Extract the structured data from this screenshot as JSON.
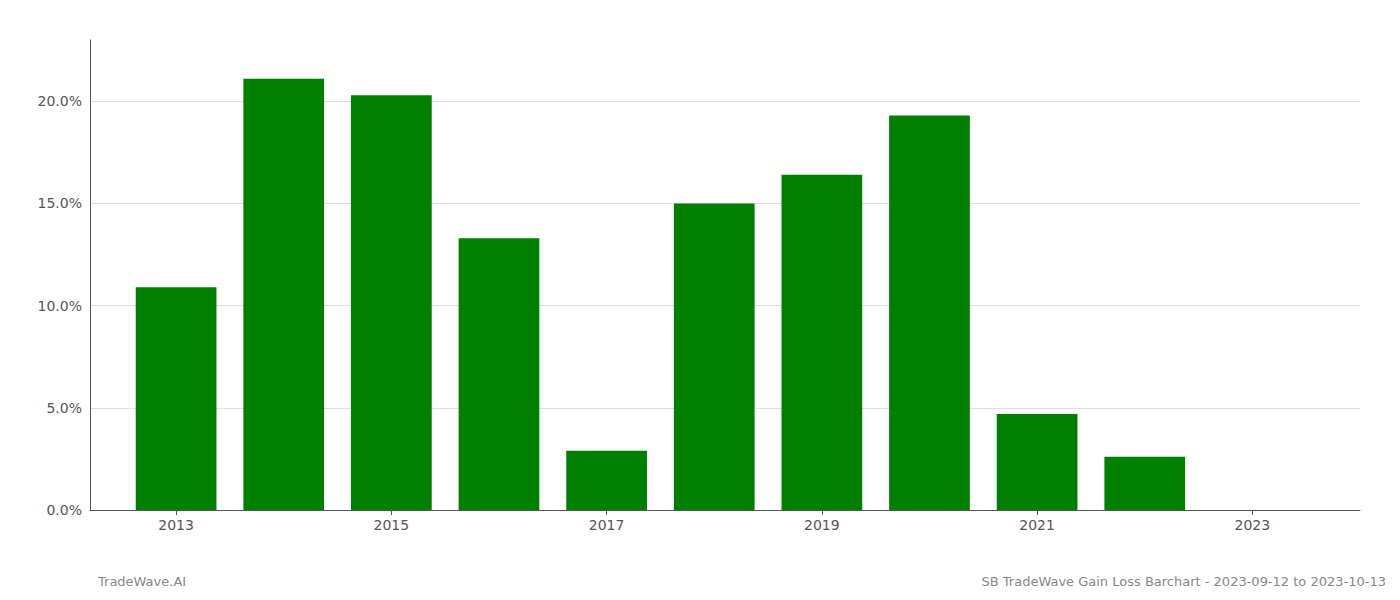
{
  "chart_data": {
    "type": "bar",
    "x": [
      2013,
      2014,
      2015,
      2016,
      2017,
      2018,
      2019,
      2020,
      2021,
      2022,
      2023
    ],
    "values": [
      0.109,
      0.211,
      0.203,
      0.133,
      0.029,
      0.15,
      0.164,
      0.193,
      0.047,
      0.026,
      0.0
    ],
    "color": "#008000",
    "xlim": [
      2012.2,
      2024.0
    ],
    "xticks": [
      2013,
      2015,
      2017,
      2019,
      2021,
      2023
    ],
    "ylim": [
      0,
      0.23
    ],
    "yticks": [
      {
        "value": 0.0,
        "label": "0.0%"
      },
      {
        "value": 0.05,
        "label": "5.0%"
      },
      {
        "value": 0.1,
        "label": "10.0%"
      },
      {
        "value": 0.15,
        "label": "15.0%"
      },
      {
        "value": 0.2,
        "label": "20.0%"
      }
    ],
    "grid": true,
    "annotations": [
      "TradeWave.AI",
      "SB TradeWave Gain Loss Barchart - 2023-09-12 to 2023-10-13"
    ]
  }
}
